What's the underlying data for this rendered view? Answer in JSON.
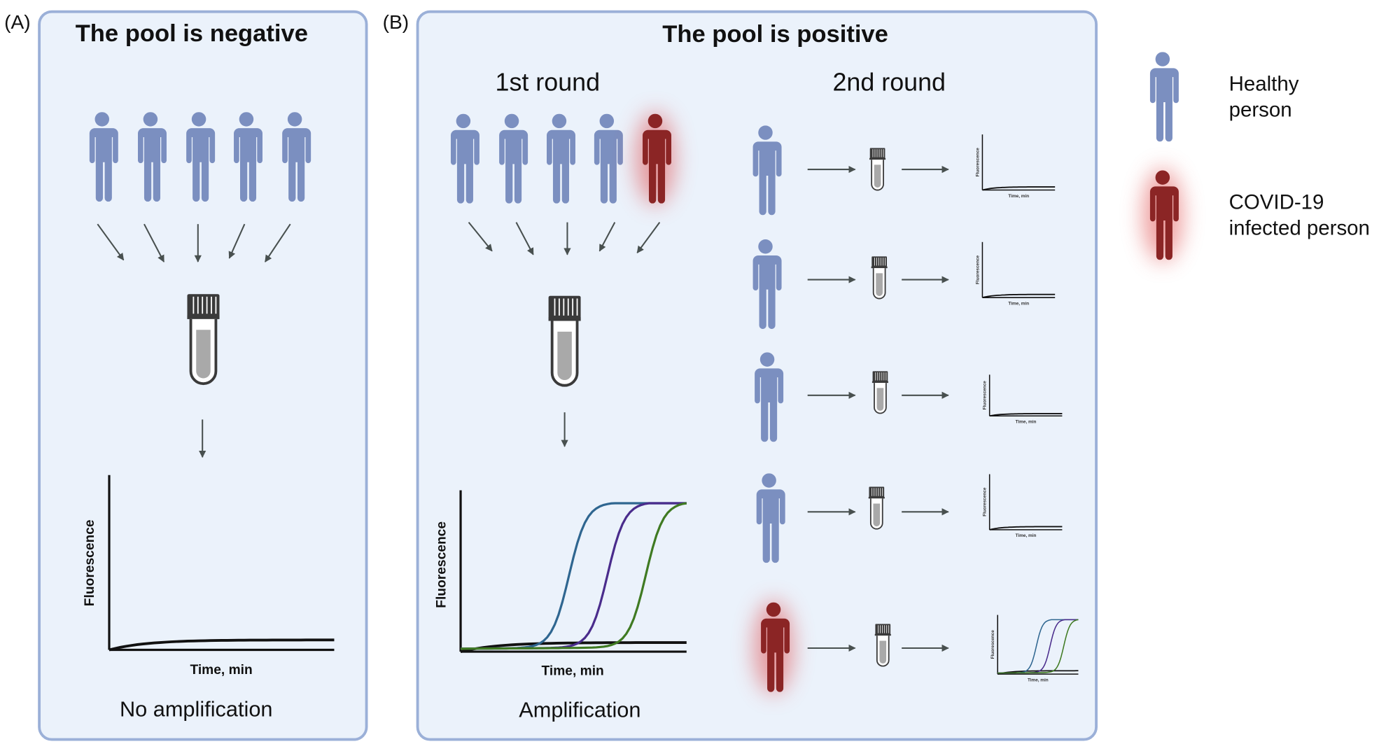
{
  "panel_a": {
    "tag": "(A)",
    "title": "The pool is negative",
    "chart": {
      "ylabel": "Fluorescence",
      "xlabel": "Time, min"
    },
    "caption": "No amplification"
  },
  "panel_b": {
    "tag": "(B)",
    "title": "The pool is positive",
    "round1": "1st round",
    "round2": "2nd round",
    "chart": {
      "ylabel": "Fluorescence",
      "xlabel": "Time, min"
    },
    "caption": "Amplification",
    "mini_chart": {
      "ylabel": "Fluorescence",
      "xlabel": "Time, min"
    }
  },
  "legend": {
    "healthy_line1": "Healthy",
    "healthy_line2": "person",
    "infected_line1": "COVID-19",
    "infected_line2": "infected person"
  },
  "colors": {
    "healthy": "#7b8fc0",
    "infected": "#8b2525",
    "panel_fill": "#ebf2fb",
    "panel_border": "#9bb0d8",
    "arrow": "#48504f",
    "curve_blue": "#2f6690",
    "curve_purple": "#4a2c8c",
    "curve_green": "#3f7a22"
  },
  "icons": {
    "person": "person-icon",
    "tube": "test-tube-icon",
    "arrow": "arrow-icon"
  }
}
